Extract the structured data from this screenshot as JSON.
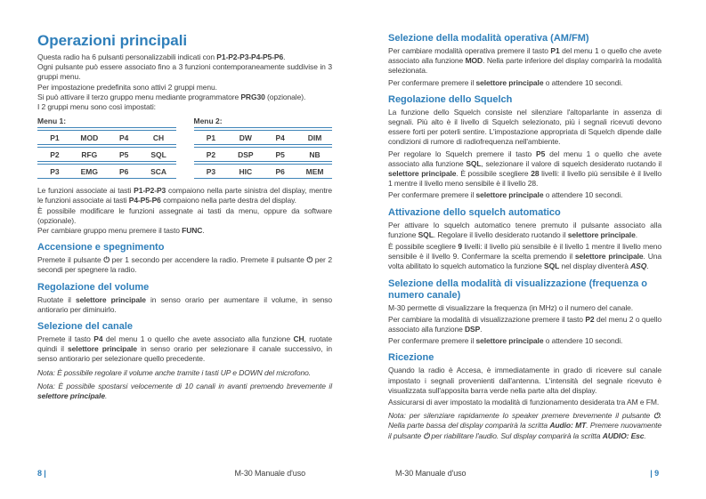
{
  "accent_color": "#2f7fba",
  "doc": {
    "left": {
      "title": "Operazioni principali",
      "intro": [
        [
          [
            "Questa radio ha 6 pulsanti personalizzabili indicati con ",
            ""
          ],
          [
            "P1-P2-P3-P4-P5-P6",
            "b"
          ],
          [
            ".",
            ""
          ]
        ],
        [
          [
            "Ogni pulsante può essere associato fino a 3 funzioni contemporaneamente suddivise in 3 gruppi menu.",
            ""
          ]
        ],
        [
          [
            "Per impostazione predefinita sono attivi 2 gruppi menu.",
            ""
          ]
        ],
        [
          [
            "Si può attivare il terzo gruppo menu mediante programmatore ",
            ""
          ],
          [
            "PRG30",
            "b"
          ],
          [
            " (opzionale).",
            ""
          ]
        ],
        [
          [
            "I 2 gruppi menu sono così impostati:",
            ""
          ]
        ]
      ],
      "menus": [
        {
          "label": "Menu 1:",
          "rows": [
            [
              "P1",
              "MOD",
              "P4",
              "CH"
            ],
            [
              "P2",
              "RFG",
              "P5",
              "SQL"
            ],
            [
              "P3",
              "EMG",
              "P6",
              "SCA"
            ]
          ]
        },
        {
          "label": "Menu 2:",
          "rows": [
            [
              "P1",
              "DW",
              "P4",
              "DIM"
            ],
            [
              "P2",
              "DSP",
              "P5",
              "NB"
            ],
            [
              "P3",
              "HIC",
              "P6",
              "MEM"
            ]
          ]
        }
      ],
      "after_tables": [
        [
          [
            "Le funzioni associate ai tasti ",
            ""
          ],
          [
            "P1-P2-P3",
            "b"
          ],
          [
            " compaiono nella parte sinistra del display, mentre le funzioni associate ai tasti ",
            ""
          ],
          [
            "P4-P5-P6",
            "b"
          ],
          [
            " compaiono nella parte destra del display.",
            ""
          ]
        ],
        [
          [
            "È possibile modificare le funzioni assegnate ai tasti da menu, oppure da software (opzionale).",
            ""
          ]
        ],
        [
          [
            "Per cambiare gruppo menu premere il tasto ",
            ""
          ],
          [
            "FUNC",
            "b"
          ],
          [
            ".",
            ""
          ]
        ]
      ],
      "sections": [
        {
          "heading": "Accensione e spegnimento",
          "paras": [
            [
              [
                "Premete il pulsante ",
                ""
              ],
              [
                "⏻",
                "b"
              ],
              [
                " per 1 secondo per accendere la radio. Premete il pulsante ",
                ""
              ],
              [
                "⏻",
                "b"
              ],
              [
                " per 2 secondi per spegnere la radio.",
                ""
              ]
            ]
          ]
        },
        {
          "heading": "Regolazione del volume",
          "paras": [
            [
              [
                "Ruotate il ",
                ""
              ],
              [
                "selettore principale",
                "b"
              ],
              [
                " in senso orario per aumentare il volume, in senso antiorario per diminuirlo.",
                ""
              ]
            ]
          ]
        },
        {
          "heading": "Selezione del canale",
          "paras": [
            [
              [
                "Premete il tasto ",
                ""
              ],
              [
                "P4",
                "b"
              ],
              [
                " del menu 1 o quello che avete associato alla funzione ",
                ""
              ],
              [
                "CH",
                "b"
              ],
              [
                ", ruotate quindi il ",
                ""
              ],
              [
                "selettore principale",
                "b"
              ],
              [
                " in senso orario per selezionare il canale successivo, in senso antiorario per selezionare quello precedente.",
                ""
              ]
            ]
          ],
          "notes": [
            [
              [
                "Nota: È possibile regolare il volume anche tramite i tasti UP e DOWN del microfono.",
                ""
              ]
            ],
            [
              [
                "Nota: È possibile spostarsi velocemente di 10 canali in avanti premendo brevemente il ",
                ""
              ],
              [
                "selettore principale",
                "b"
              ],
              [
                ".",
                ""
              ]
            ]
          ]
        }
      ],
      "footer": {
        "page_label": "8 |",
        "doc_title": "M-30 Manuale d'uso"
      }
    },
    "right": {
      "sections": [
        {
          "heading": "Selezione della modalità operativa (AM/FM)",
          "paras": [
            [
              [
                "Per cambiare modalità operativa premere il tasto ",
                ""
              ],
              [
                "P1",
                "b"
              ],
              [
                " del menu 1 o quello che avete associato alla funzione ",
                ""
              ],
              [
                "MOD",
                "b"
              ],
              [
                ". Nella parte inferiore del display comparirà la modalità selezionata.",
                ""
              ]
            ],
            [
              [
                "Per confermare premere il ",
                ""
              ],
              [
                "selettore principale",
                "b"
              ],
              [
                " o attendere 10 secondi.",
                ""
              ]
            ]
          ]
        },
        {
          "heading": "Regolazione dello Squelch",
          "paras": [
            [
              [
                "La funzione dello Squelch consiste nel silenziare l'altoparlante in assenza di segnali. Più alto è il livello di Squelch selezionato, più i segnali ricevuti devono essere forti per poterli sentire. L'impostazione appropriata di Squelch dipende dalle condizioni di rumore di radiofrequenza nell'ambiente.",
                ""
              ]
            ],
            [
              [
                "Per regolare lo Squelch premere il tasto ",
                ""
              ],
              [
                "P5",
                "b"
              ],
              [
                " del menu 1 o quello che avete associato alla funzione ",
                ""
              ],
              [
                "SQL",
                "b"
              ],
              [
                ", selezionare il valore di squelch desiderato ruotando il ",
                ""
              ],
              [
                "selettore principale",
                "b"
              ],
              [
                ". È possibile scegliere ",
                ""
              ],
              [
                "28",
                "b"
              ],
              [
                " livelli: il livello più sensibile è il livello 1 mentre il livello meno sensibile è il livello 28.",
                ""
              ]
            ],
            [
              [
                "Per confermare premere il ",
                ""
              ],
              [
                "selettore principale",
                "b"
              ],
              [
                " o attendere 10 secondi.",
                ""
              ]
            ]
          ]
        },
        {
          "heading": "Attivazione dello squelch automatico",
          "paras": [
            [
              [
                "Per attivare lo squelch automatico tenere premuto il pulsante associato alla funzione ",
                ""
              ],
              [
                "SQL",
                "b"
              ],
              [
                ". Regolare il livello desiderato ruotando il ",
                ""
              ],
              [
                "selettore principale",
                "b"
              ],
              [
                ".",
                ""
              ]
            ],
            [
              [
                "È possibile scegliere ",
                ""
              ],
              [
                "9",
                "b"
              ],
              [
                " livelli: il livello più sensibile è il livello 1 mentre il livello meno sensibile è il livello 9. Confermare la scelta premendo il ",
                ""
              ],
              [
                "selettore principale",
                "b"
              ],
              [
                ". Una volta abilitato lo squelch automatico la funzione ",
                ""
              ],
              [
                "SQL",
                "b"
              ],
              [
                " nel display diventerà ",
                ""
              ],
              [
                "ASQ",
                "bi"
              ],
              [
                ".",
                ""
              ]
            ]
          ]
        },
        {
          "heading": "Selezione della modalità di visualizzazione (frequenza o numero canale)",
          "paras": [
            [
              [
                "M-30 permette di visualizzare la frequenza (in MHz) o il numero del canale.",
                ""
              ]
            ],
            [
              [
                "Per cambiare la modalità di visualizzazione premere il tasto ",
                ""
              ],
              [
                "P2",
                "b"
              ],
              [
                " del menu 2 o quello associato alla funzione ",
                ""
              ],
              [
                "DSP",
                "b"
              ],
              [
                ".",
                ""
              ]
            ],
            [
              [
                "Per confermare premere il ",
                ""
              ],
              [
                "selettore principale",
                "b"
              ],
              [
                " o attendere 10 secondi.",
                ""
              ]
            ]
          ]
        },
        {
          "heading": "Ricezione",
          "paras": [
            [
              [
                "Quando la radio è Accesa, è immediatamente in grado di ricevere sul canale impostato i segnali provenienti dall'antenna. L'intensità del segnale ricevuto è visualizzata sull'apposita barra verde nella parte alta del display.",
                ""
              ]
            ],
            [
              [
                "Assicurarsi di aver impostato la modalità di funzionamento desiderata tra AM e FM.",
                ""
              ]
            ]
          ],
          "notes": [
            [
              [
                "Nota: per silenziare rapidamente lo speaker premere brevemente il pulsante ",
                ""
              ],
              [
                "⏻",
                "b"
              ],
              [
                ". Nella parte bassa del display comparirà la scritta ",
                ""
              ],
              [
                "Audio: MT",
                "b"
              ],
              [
                ". Premere nuovamente il pulsante ",
                ""
              ],
              [
                "⏻",
                "b"
              ],
              [
                " per riabilitare l'audio. Sul display comparirà la scritta ",
                ""
              ],
              [
                "AUDIO: Esc",
                "b"
              ],
              [
                ".",
                ""
              ]
            ]
          ]
        }
      ],
      "footer": {
        "doc_title": "M-30 Manuale d'uso",
        "page_label": "| 9"
      }
    }
  }
}
